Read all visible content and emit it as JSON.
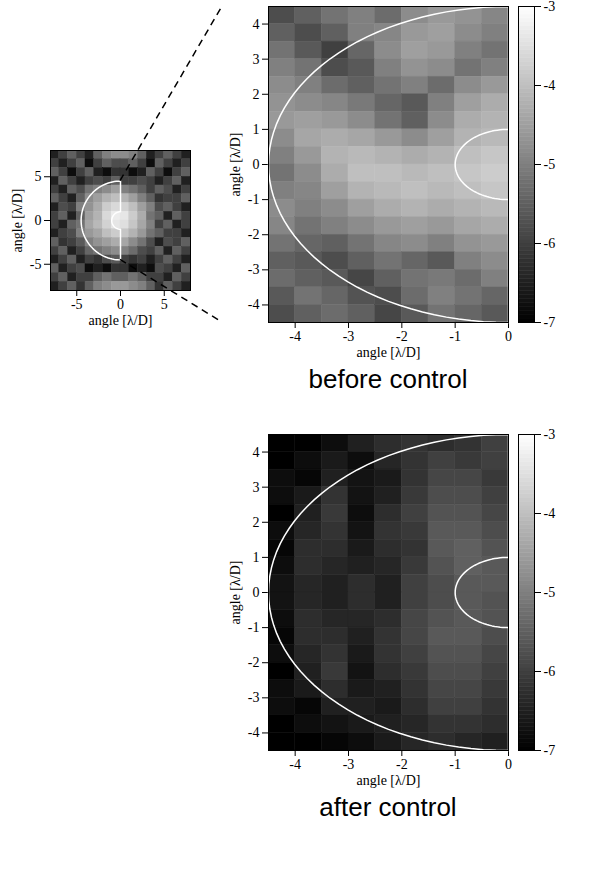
{
  "chart_data": [
    {
      "type": "heatmap",
      "x_label": "angle [λ/D]",
      "y_label": "angle [λ/D]",
      "xlim": [
        -8,
        8
      ],
      "ylim": [
        -8,
        8
      ],
      "xticks": [
        -5,
        0,
        5
      ],
      "yticks": [
        -5,
        0,
        5
      ],
      "color_range": [
        -7,
        -3
      ],
      "dark_hole": {
        "inner_radius": 1,
        "outer_radius": 4.5
      },
      "marker": "plus",
      "marker_at": [
        0,
        0
      ],
      "cells": [
        [
          -6.5,
          -6,
          -5.5,
          -6,
          -6.5,
          -5.5,
          -5,
          -4.8,
          -4.8,
          -5,
          -5.5,
          -6.5,
          -6,
          -5.5,
          -6,
          -6.5
        ],
        [
          -6,
          -6.5,
          -6,
          -5.5,
          -6.8,
          -6,
          -5.5,
          -5.8,
          -5.8,
          -5.5,
          -6,
          -6.8,
          -5.5,
          -6,
          -6.5,
          -6
        ],
        [
          -5.5,
          -6,
          -6.8,
          -6,
          -5.5,
          -6.5,
          -6.8,
          -6.2,
          -6.2,
          -6.8,
          -6.5,
          -5.5,
          -6,
          -6.8,
          -6,
          -5.5
        ],
        [
          -6.5,
          -5.5,
          -6,
          -6.5,
          -6,
          -5.8,
          -6,
          -5.5,
          -6,
          -6,
          -5.8,
          -6,
          -6.5,
          -6,
          -5.5,
          -6.5
        ],
        [
          -6,
          -6.5,
          -5.5,
          -5.8,
          -5.2,
          -5,
          -4.8,
          -4.5,
          -5,
          -5.2,
          -5.5,
          -6,
          -5.5,
          -5.8,
          -6.5,
          -6
        ],
        [
          -5.5,
          -6,
          -6.5,
          -5.5,
          -4.8,
          -4.5,
          -4.2,
          -4,
          -4.2,
          -4.5,
          -5,
          -5.5,
          -6.2,
          -6,
          -6,
          -5.5
        ],
        [
          -6.5,
          -5.8,
          -6,
          -5,
          -4.7,
          -4.3,
          -3.8,
          -3.6,
          -3.7,
          -4,
          -4.5,
          -5,
          -5.8,
          -5.5,
          -6,
          -6.5
        ],
        [
          -6,
          -5.5,
          -6.5,
          -5.5,
          -4.5,
          -4.2,
          -3.6,
          -3.3,
          -3.4,
          -3.8,
          -4.3,
          -5.2,
          -5.5,
          -6.5,
          -5.5,
          -6
        ],
        [
          -6,
          -6.5,
          -5.5,
          -5.2,
          -4.4,
          -4.1,
          -3.7,
          -3.4,
          -3.5,
          -3.9,
          -4.4,
          -5,
          -6,
          -5.5,
          -6.5,
          -6
        ],
        [
          -6.5,
          -6,
          -5.8,
          -5,
          -4.6,
          -4.4,
          -4,
          -3.8,
          -3.9,
          -4.2,
          -4.6,
          -5.2,
          -5.5,
          -6,
          -6,
          -6.5
        ],
        [
          -5.5,
          -6.2,
          -6,
          -5.6,
          -5,
          -4.7,
          -4.5,
          -4.3,
          -4.4,
          -4.8,
          -5.2,
          -5.8,
          -6.5,
          -5.8,
          -6,
          -5.5
        ],
        [
          -6,
          -5.5,
          -6.5,
          -6,
          -5.4,
          -5.2,
          -5,
          -4.8,
          -5,
          -5.3,
          -5.8,
          -6,
          -5.5,
          -6.5,
          -5.5,
          -6
        ],
        [
          -6.5,
          -6,
          -5.5,
          -6.5,
          -6,
          -6.2,
          -5.8,
          -5.6,
          -6,
          -6.2,
          -6,
          -6.5,
          -6,
          -5.5,
          -6,
          -6.5
        ],
        [
          -5.5,
          -6.5,
          -6,
          -5.8,
          -6.8,
          -6.5,
          -6.8,
          -6.2,
          -6.2,
          -6.8,
          -6.5,
          -6.8,
          -5.8,
          -6,
          -6.5,
          -5.5
        ],
        [
          -6,
          -5.5,
          -6.5,
          -6,
          -6,
          -5.5,
          -5.2,
          -5.5,
          -5.5,
          -5.2,
          -5.5,
          -6,
          -6,
          -6.5,
          -5.5,
          -6
        ],
        [
          -6.5,
          -6,
          -5.5,
          -6.2,
          -5.5,
          -5,
          -4.8,
          -4.6,
          -4.6,
          -4.8,
          -5,
          -5.5,
          -6.2,
          -5.5,
          -6,
          -6.5
        ]
      ]
    },
    {
      "type": "heatmap",
      "caption": "before control",
      "x_label": "angle [λ/D]",
      "y_label": "angle [λ/D]",
      "xlim": [
        -4.5,
        0
      ],
      "ylim": [
        -4.5,
        4.5
      ],
      "xticks": [
        -4,
        -3,
        -2,
        -1,
        0
      ],
      "yticks": [
        -4,
        -3,
        -2,
        -1,
        0,
        1,
        2,
        3,
        4
      ],
      "colorbar": {
        "lim": [
          -7,
          -3
        ],
        "ticks": [
          -3,
          -4,
          -5,
          -6,
          -7
        ]
      },
      "dark_hole": {
        "inner_radius": 1,
        "outer_radius": 4.5
      },
      "cells": [
        [
          -5.8,
          -5.5,
          -5.2,
          -5,
          -5.3,
          -4.8,
          -4.6,
          -4.7,
          -4.9
        ],
        [
          -5.5,
          -5.8,
          -5.5,
          -5,
          -4.9,
          -4.6,
          -4.5,
          -4.8,
          -5
        ],
        [
          -5.2,
          -5.6,
          -6,
          -5.4,
          -4.8,
          -4.5,
          -4.6,
          -5,
          -5.2
        ],
        [
          -5,
          -5.2,
          -5.8,
          -5.6,
          -5,
          -4.7,
          -4.8,
          -5.2,
          -5
        ],
        [
          -4.8,
          -5,
          -5.3,
          -5.5,
          -5.2,
          -5,
          -5.3,
          -4.8,
          -4.6
        ],
        [
          -4.7,
          -4.8,
          -4.9,
          -5.1,
          -5.4,
          -5.6,
          -5,
          -4.5,
          -4.3
        ],
        [
          -4.6,
          -4.5,
          -4.6,
          -4.8,
          -5.2,
          -5.5,
          -4.8,
          -4.3,
          -4.2
        ],
        [
          -4.8,
          -4.4,
          -4.3,
          -4.4,
          -4.6,
          -4.8,
          -4.5,
          -4.2,
          -4.1
        ],
        [
          -5,
          -4.6,
          -4.2,
          -4.1,
          -4.2,
          -4.3,
          -4.2,
          -4,
          -3.9
        ],
        [
          -5.2,
          -4.8,
          -4.3,
          -4,
          -4,
          -4.1,
          -4,
          -3.9,
          -3.8
        ],
        [
          -5,
          -4.9,
          -4.5,
          -4.2,
          -4.1,
          -4,
          -4.1,
          -4,
          -3.9
        ],
        [
          -4.8,
          -5,
          -4.8,
          -4.5,
          -4.3,
          -4.2,
          -4.3,
          -4.2,
          -4.1
        ],
        [
          -4.9,
          -5.2,
          -5,
          -4.8,
          -4.6,
          -4.5,
          -4.6,
          -4.4,
          -4.3
        ],
        [
          -5.2,
          -5.4,
          -5.5,
          -5.2,
          -4.9,
          -4.8,
          -5,
          -4.7,
          -4.6
        ],
        [
          -5.5,
          -5.6,
          -5.8,
          -5.5,
          -5.2,
          -5.4,
          -5.6,
          -5,
          -4.8
        ],
        [
          -5.3,
          -5.5,
          -5.6,
          -5.9,
          -5.5,
          -5.2,
          -5.1,
          -5.3,
          -5
        ],
        [
          -5.6,
          -5.2,
          -5.4,
          -5.7,
          -5.8,
          -5.3,
          -5,
          -5.2,
          -5.4
        ],
        [
          -5.8,
          -5.5,
          -5.3,
          -5.5,
          -5.9,
          -5.6,
          -5.2,
          -5.4,
          -5.6
        ]
      ]
    },
    {
      "type": "heatmap",
      "caption": "after control",
      "x_label": "angle [λ/D]",
      "y_label": "angle [λ/D]",
      "xlim": [
        -4.5,
        0
      ],
      "ylim": [
        -4.5,
        4.5
      ],
      "xticks": [
        -4,
        -3,
        -2,
        -1,
        0
      ],
      "yticks": [
        -4,
        -3,
        -2,
        -1,
        0,
        1,
        2,
        3,
        4
      ],
      "colorbar": {
        "lim": [
          -7,
          -3
        ],
        "ticks": [
          -3,
          -4,
          -5,
          -6,
          -7
        ]
      },
      "dark_hole": {
        "inner_radius": 1,
        "outer_radius": 4.5
      },
      "cells": [
        [
          -7,
          -7,
          -6.8,
          -6.5,
          -6.3,
          -6.2,
          -6.3,
          -6.2,
          -6
        ],
        [
          -7,
          -6.8,
          -6.6,
          -6.8,
          -6.4,
          -6.2,
          -6,
          -6.1,
          -6
        ],
        [
          -6.8,
          -6.9,
          -6.5,
          -6.7,
          -6.6,
          -6.2,
          -5.9,
          -5.9,
          -6.1
        ],
        [
          -6.8,
          -6.6,
          -6.2,
          -6.7,
          -6.5,
          -6.1,
          -5.8,
          -5.8,
          -6
        ],
        [
          -7,
          -6.5,
          -6.1,
          -6.8,
          -6.3,
          -6,
          -5.7,
          -5.7,
          -5.9
        ],
        [
          -6.8,
          -6.4,
          -6.2,
          -6.7,
          -6.2,
          -6.1,
          -5.6,
          -5.6,
          -5.8
        ],
        [
          -6.9,
          -6.3,
          -6.3,
          -6.6,
          -6.3,
          -6.2,
          -5.6,
          -5.5,
          -5.7
        ],
        [
          -6.8,
          -6.3,
          -6.4,
          -6.5,
          -6.4,
          -6.1,
          -5.7,
          -5.5,
          -5.6
        ],
        [
          -6.7,
          -6.4,
          -6.5,
          -6.3,
          -6.5,
          -6,
          -5.8,
          -5.6,
          -5.6
        ],
        [
          -6.7,
          -6.4,
          -6.5,
          -6.3,
          -6.5,
          -6,
          -5.8,
          -5.6,
          -5.7
        ],
        [
          -6.8,
          -6.3,
          -6.4,
          -6.4,
          -6.3,
          -5.9,
          -5.7,
          -5.6,
          -5.7
        ],
        [
          -6.9,
          -6.3,
          -6.3,
          -6.5,
          -6.2,
          -5.9,
          -5.6,
          -5.6,
          -5.8
        ],
        [
          -6.8,
          -6.4,
          -6.2,
          -6.6,
          -6.2,
          -6,
          -5.7,
          -5.7,
          -5.9
        ],
        [
          -7,
          -6.5,
          -6.1,
          -6.7,
          -6.3,
          -6.1,
          -5.8,
          -5.8,
          -6
        ],
        [
          -6.8,
          -6.6,
          -6.3,
          -6.6,
          -6.5,
          -6.2,
          -5.9,
          -5.9,
          -6.1
        ],
        [
          -6.8,
          -6.9,
          -6.5,
          -6.5,
          -6.6,
          -6.3,
          -6,
          -6,
          -6.2
        ],
        [
          -7,
          -6.8,
          -6.7,
          -6.6,
          -6.5,
          -6.4,
          -6.2,
          -6.2,
          -6.3
        ],
        [
          -7,
          -7,
          -6.9,
          -6.8,
          -6.6,
          -6.4,
          -6.3,
          -6.4,
          -6.5
        ]
      ]
    }
  ]
}
